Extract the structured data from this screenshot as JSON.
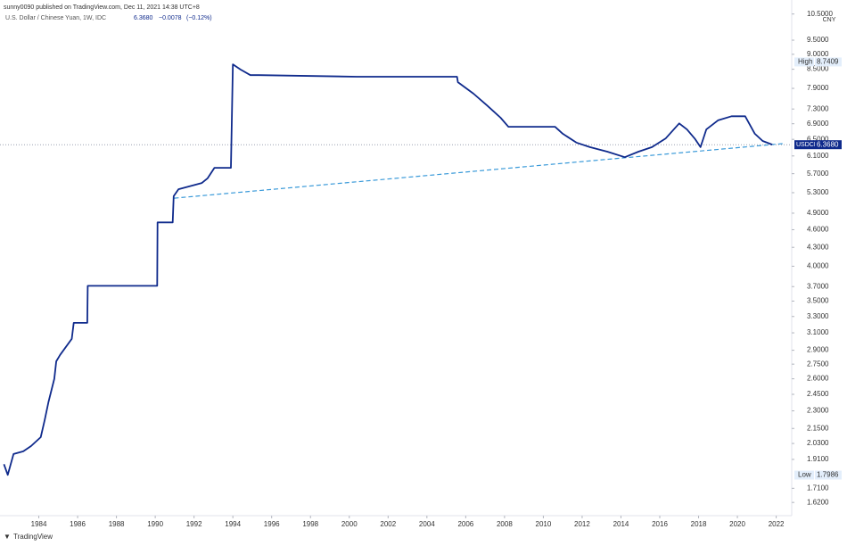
{
  "header": {
    "publisher": "sunny0090 published on TradingView.com, Dec 11, 2021 14:38 UTC+8",
    "brand": "TradingView"
  },
  "chart_data": {
    "type": "line",
    "title": "U.S. Dollar / Chinese Yuan, 1W, IDC",
    "quote": {
      "value": 6.368,
      "label": "6.3680"
    },
    "change": {
      "value": -0.0078,
      "label": "−0.0078"
    },
    "change_pct": {
      "value": -0.12,
      "label": "(−0.12%)"
    },
    "y_unit": "CNY",
    "log_scale": true,
    "xlim": [
      1982.0,
      2022.8
    ],
    "ylim": [
      1.54,
      10.78
    ],
    "xticks": [
      1984,
      1986,
      1988,
      1990,
      1992,
      1994,
      1996,
      1998,
      2000,
      2002,
      2004,
      2006,
      2008,
      2010,
      2012,
      2014,
      2016,
      2018,
      2020,
      2022
    ],
    "yticks": [
      {
        "value": 10.5,
        "label": "10.5000"
      },
      {
        "value": 9.5,
        "label": "9.5000"
      },
      {
        "value": 9.0,
        "label": "9.0000"
      },
      {
        "value": 8.5,
        "label": "8.5000"
      },
      {
        "value": 7.9,
        "label": "7.9000"
      },
      {
        "value": 7.3,
        "label": "7.3000"
      },
      {
        "value": 6.9,
        "label": "6.9000"
      },
      {
        "value": 6.5,
        "label": "6.5000"
      },
      {
        "value": 6.1,
        "label": "6.1000"
      },
      {
        "value": 5.7,
        "label": "5.7000"
      },
      {
        "value": 5.3,
        "label": "5.3000"
      },
      {
        "value": 4.9,
        "label": "4.9000"
      },
      {
        "value": 4.6,
        "label": "4.6000"
      },
      {
        "value": 4.3,
        "label": "4.3000"
      },
      {
        "value": 4.0,
        "label": "4.0000"
      },
      {
        "value": 3.7,
        "label": "3.7000"
      },
      {
        "value": 3.5,
        "label": "3.5000"
      },
      {
        "value": 3.3,
        "label": "3.3000"
      },
      {
        "value": 3.1,
        "label": "3.1000"
      },
      {
        "value": 2.9,
        "label": "2.9000"
      },
      {
        "value": 2.75,
        "label": "2.7500"
      },
      {
        "value": 2.6,
        "label": "2.6000"
      },
      {
        "value": 2.45,
        "label": "2.4500"
      },
      {
        "value": 2.3,
        "label": "2.3000"
      },
      {
        "value": 2.15,
        "label": "2.1500"
      },
      {
        "value": 2.03,
        "label": "2.0300"
      },
      {
        "value": 1.91,
        "label": "1.9100"
      },
      {
        "value": 1.71,
        "label": "1.7100"
      },
      {
        "value": 1.62,
        "label": "1.6200"
      }
    ],
    "series": [
      {
        "name": "USDCNY",
        "color": "#0f2a8c",
        "x": [
          1982.2,
          1982.4,
          1982.7,
          1983.2,
          1983.6,
          1984.1,
          1984.3,
          1984.5,
          1984.8,
          1984.9,
          1985.1,
          1985.7,
          1985.8,
          1986.5,
          1986.52,
          1990.1,
          1990.12,
          1990.9,
          1990.95,
          1991.2,
          1992.4,
          1992.7,
          1993.05,
          1993.9,
          1994.0,
          1994.4,
          1994.9,
          1995.35,
          2000.4,
          2005.55,
          2005.6,
          2006.4,
          2007.1,
          2007.8,
          2008.2,
          2008.6,
          2010.6,
          2011.0,
          2011.7,
          2012.4,
          2013.3,
          2014.2,
          2014.9,
          2015.6,
          2016.3,
          2017.0,
          2017.4,
          2017.8,
          2018.1,
          2018.4,
          2019.0,
          2019.7,
          2020.4,
          2020.9,
          2021.3,
          2021.8
        ],
        "values": [
          1.875,
          1.8,
          1.95,
          1.97,
          2.01,
          2.08,
          2.22,
          2.38,
          2.6,
          2.78,
          2.85,
          3.03,
          3.22,
          3.22,
          3.71,
          3.71,
          4.73,
          4.73,
          5.23,
          5.37,
          5.5,
          5.6,
          5.83,
          5.83,
          8.66,
          8.49,
          8.31,
          8.31,
          8.26,
          8.26,
          8.09,
          7.74,
          7.4,
          7.06,
          6.82,
          6.82,
          6.82,
          6.64,
          6.42,
          6.31,
          6.2,
          6.07,
          6.2,
          6.31,
          6.52,
          6.91,
          6.75,
          6.52,
          6.31,
          6.75,
          6.99,
          7.1,
          7.1,
          6.64,
          6.46,
          6.37
        ]
      }
    ],
    "trendline": {
      "x": [
        1990.98,
        2022.46
      ],
      "values": [
        5.19,
        6.4
      ],
      "color": "#3a9ad9"
    },
    "markers": [
      {
        "name": "High",
        "value": 8.7409,
        "value_label": "8.7409"
      },
      {
        "name": "Low",
        "value": 1.7986,
        "value_label": "1.7986"
      }
    ]
  }
}
